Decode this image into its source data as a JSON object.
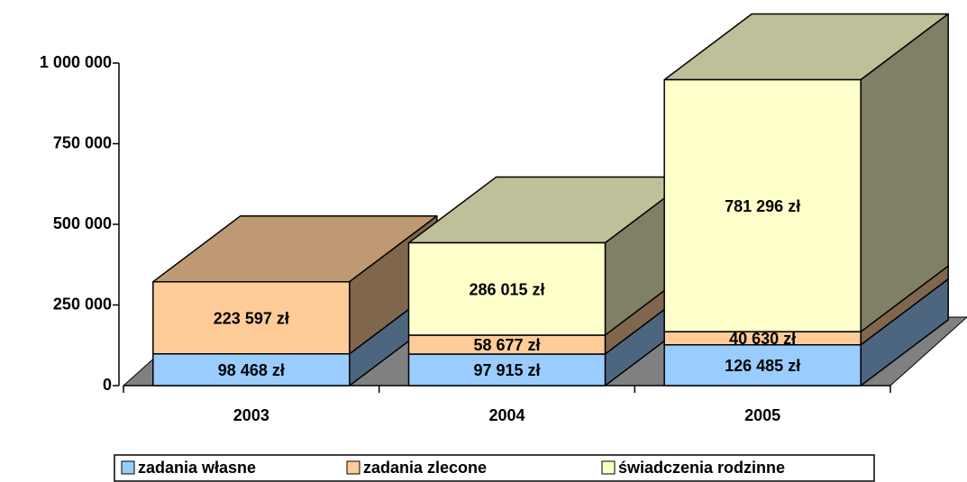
{
  "chart_data": {
    "type": "bar3d_stacked",
    "categories": [
      "2003",
      "2004",
      "2005"
    ],
    "series": [
      {
        "name": "zadania własne",
        "color": "#99ccff",
        "side": "#4d6680",
        "values": [
          98468,
          97915,
          126485
        ],
        "value_labels": [
          "98 468 zł",
          "97 915 zł",
          "126 485 zł"
        ]
      },
      {
        "name": "zadania zlecone",
        "color": "#ffcc99",
        "side": "#80664d",
        "top": "#bf9973",
        "values": [
          223597,
          58677,
          40630
        ],
        "value_labels": [
          "223 597 zł",
          "58 677 zł",
          "40 630 zł"
        ]
      },
      {
        "name": "świadczenia rodzinne",
        "color": "#ffffcc",
        "side": "#808066",
        "top": "#bfbf99",
        "values": [
          null,
          286015,
          781296
        ],
        "value_labels": [
          null,
          "286 015 zł",
          "781 296 zł"
        ]
      }
    ],
    "ylim": [
      0,
      1000000
    ],
    "yticks": [
      0,
      {
        "value": 250000,
        "label": "250 000"
      },
      {
        "value": 500000,
        "label": "500 000"
      },
      {
        "value": 750000,
        "label": "750 000"
      },
      {
        "value": 1000000,
        "label": "1 000 000"
      }
    ],
    "legend": "bottom"
  }
}
